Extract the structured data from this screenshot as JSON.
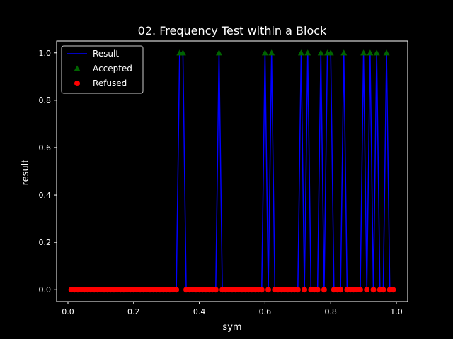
{
  "chart_data": {
    "type": "line",
    "title": "02. Frequency Test within a Block",
    "xlabel": "sym",
    "ylabel": "result",
    "xlim": [
      -0.0345,
      1.0345
    ],
    "ylim": [
      -0.05,
      1.05
    ],
    "xticks": [
      "0.0",
      "0.2",
      "0.4",
      "0.6",
      "0.8",
      "1.0"
    ],
    "yticks": [
      "0.0",
      "0.2",
      "0.4",
      "0.6",
      "0.8",
      "1.0"
    ],
    "legend_position": "top-left",
    "legend": [
      "Result",
      "Accepted",
      "Refused"
    ],
    "colors": {
      "background": "#000000",
      "line": "#0000ff",
      "accepted": "#006400",
      "refused": "#ff0000",
      "axes": "#ffffff"
    },
    "x": [
      0.01,
      0.02,
      0.03,
      0.04,
      0.05,
      0.06,
      0.07,
      0.08,
      0.09,
      0.1,
      0.11,
      0.12,
      0.13,
      0.14,
      0.15,
      0.16,
      0.17,
      0.18,
      0.19,
      0.2,
      0.21,
      0.22,
      0.23,
      0.24,
      0.25,
      0.26,
      0.27,
      0.28,
      0.29,
      0.3,
      0.31,
      0.32,
      0.33,
      0.34,
      0.35,
      0.36,
      0.37,
      0.38,
      0.39,
      0.4,
      0.41,
      0.42,
      0.43,
      0.44,
      0.45,
      0.46,
      0.47,
      0.48,
      0.49,
      0.5,
      0.51,
      0.52,
      0.53,
      0.54,
      0.55,
      0.56,
      0.57,
      0.58,
      0.59,
      0.6,
      0.61,
      0.62,
      0.63,
      0.64,
      0.65,
      0.66,
      0.67,
      0.68,
      0.69,
      0.7,
      0.71,
      0.72,
      0.73,
      0.74,
      0.75,
      0.76,
      0.77,
      0.78,
      0.79,
      0.8,
      0.81,
      0.82,
      0.83,
      0.84,
      0.85,
      0.86,
      0.87,
      0.88,
      0.89,
      0.9,
      0.91,
      0.92,
      0.93,
      0.94,
      0.95,
      0.96,
      0.97,
      0.98,
      0.99
    ],
    "series": [
      {
        "name": "Result",
        "values": [
          0,
          0,
          0,
          0,
          0,
          0,
          0,
          0,
          0,
          0,
          0,
          0,
          0,
          0,
          0,
          0,
          0,
          0,
          0,
          0,
          0,
          0,
          0,
          0,
          0,
          0,
          0,
          0,
          0,
          0,
          0,
          0,
          0,
          1,
          1,
          0,
          0,
          0,
          0,
          0,
          0,
          0,
          0,
          0,
          0,
          1,
          0,
          0,
          0,
          0,
          0,
          0,
          0,
          0,
          0,
          0,
          0,
          0,
          0,
          1,
          0,
          1,
          0,
          0,
          0,
          0,
          0,
          0,
          0,
          0,
          1,
          0,
          1,
          0,
          0,
          0,
          1,
          0,
          1,
          1,
          0,
          0,
          0,
          1,
          0,
          0,
          0,
          0,
          0,
          1,
          0,
          1,
          0,
          1,
          0,
          0,
          1,
          0,
          0
        ]
      }
    ]
  }
}
